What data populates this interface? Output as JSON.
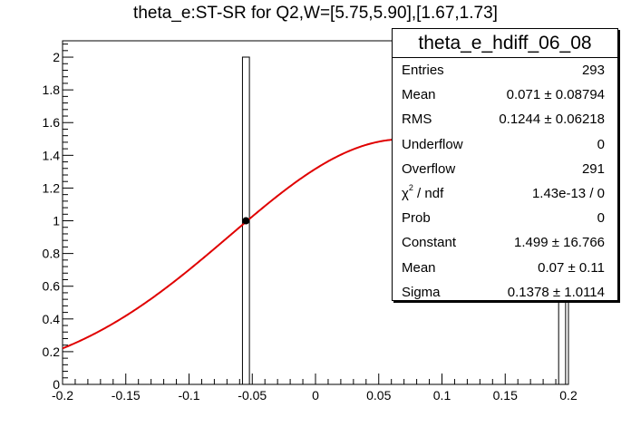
{
  "title": "theta_e:ST-SR for Q2,W=[5.75,5.90],[1.67,1.73]",
  "stats": {
    "name": "theta_e_hdiff_06_08",
    "rows": [
      {
        "label": "Entries",
        "value": "293"
      },
      {
        "label": "Mean",
        "value": "0.071 ± 0.08794"
      },
      {
        "label": "RMS",
        "value": "0.1244 ± 0.06218"
      },
      {
        "label": "Underflow",
        "value": "0"
      },
      {
        "label": "Overflow",
        "value": "291"
      },
      {
        "label": "χ2 / ndf",
        "value": "1.43e-13 / 0"
      },
      {
        "label": "Prob",
        "value": "0"
      },
      {
        "label": "Constant",
        "value": "1.499 ± 16.766"
      },
      {
        "label": "Mean",
        "value": "0.07 ± 0.11"
      },
      {
        "label": "Sigma",
        "value": "0.1378 ± 1.0114"
      }
    ]
  },
  "chart_data": {
    "type": "line",
    "title": "theta_e:ST-SR for Q2,W=[5.75,5.90],[1.67,1.73]",
    "xlim": [
      -0.2,
      0.2
    ],
    "ylim": [
      0,
      2.1
    ],
    "x_ticks": [
      "-0.2",
      "-0.15",
      "-0.1",
      "-0.05",
      "0",
      "0.05",
      "0.1",
      "0.15",
      "0.2"
    ],
    "y_ticks": [
      "0",
      "0.2",
      "0.4",
      "0.6",
      "0.8",
      "1",
      "1.2",
      "1.4",
      "1.6",
      "1.8",
      "2"
    ],
    "grid": false,
    "histogram": {
      "bars": [
        {
          "x": -0.055,
          "height": 2
        },
        {
          "x": 0.195,
          "height": 2
        }
      ],
      "points": [
        {
          "x": -0.055,
          "y": 1
        }
      ]
    },
    "fit": {
      "function": "gaus",
      "constant": 1.499,
      "mean": 0.07,
      "sigma": 0.1378,
      "color": "#e00000"
    },
    "colors": {
      "fit": "#e00000",
      "axes": "#000000"
    }
  }
}
